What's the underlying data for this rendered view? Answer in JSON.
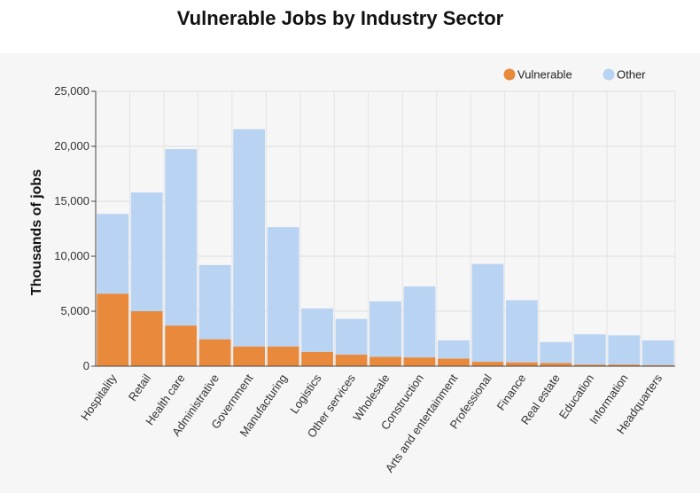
{
  "chart_data": {
    "type": "bar",
    "stacked": true,
    "title": "Vulnerable Jobs by Industry Sector",
    "xlabel": "",
    "ylabel": "Thousands of jobs",
    "ylim": [
      0,
      25000
    ],
    "yticks": [
      "0",
      "5,000",
      "10,000",
      "15,000",
      "20,000",
      "25,000"
    ],
    "ytick_values": [
      0,
      5000,
      10000,
      15000,
      20000,
      25000
    ],
    "grid": true,
    "legend_position": "top-right",
    "categories": [
      "Hospitality",
      "Retail",
      "Health care",
      "Administrative",
      "Government",
      "Manufacturing",
      "Logistics",
      "Other services",
      "Wholesale",
      "Construction",
      "Arts and entertainment",
      "Professional",
      "Finance",
      "Real estate",
      "Education",
      "Information",
      "Headquarters"
    ],
    "series": [
      {
        "name": "Vulnerable",
        "color": "#e8893c",
        "values": [
          6600,
          5000,
          3700,
          2450,
          1800,
          1800,
          1300,
          1050,
          850,
          800,
          700,
          400,
          350,
          300,
          150,
          150,
          100
        ]
      },
      {
        "name": "Other",
        "color": "#b9d3f3",
        "values": [
          7250,
          10800,
          16050,
          6750,
          19750,
          10850,
          3950,
          3250,
          5050,
          6450,
          1650,
          8900,
          5650,
          1900,
          2750,
          2650,
          2250
        ]
      }
    ]
  }
}
